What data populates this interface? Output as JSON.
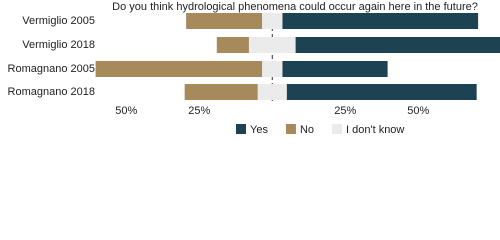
{
  "chart_data": {
    "type": "diverging-bar",
    "title": "Do you think hydrological phenomena could occur again here in the future?",
    "categories": [
      "Vermiglio 2005",
      "Vermiglio 2018",
      "Romagnano 2005",
      "Romagnano 2018"
    ],
    "series": [
      {
        "name": "Yes",
        "color": "#1d4252",
        "values": [
          67,
          73,
          36,
          65
        ]
      },
      {
        "name": "No",
        "color": "#a68a5b",
        "values": [
          26,
          11,
          57,
          25
        ]
      },
      {
        "name": "I don't know",
        "color": "#ebebeb",
        "values": [
          7,
          16,
          7,
          10
        ]
      }
    ],
    "xlim": [
      -59,
      78
    ],
    "xticks": [
      {
        "value": -50,
        "label": "50%"
      },
      {
        "value": -25,
        "label": "25%"
      },
      {
        "value": 25,
        "label": "25%"
      },
      {
        "value": 50,
        "label": "50%"
      }
    ],
    "legend": "bottom-right"
  }
}
